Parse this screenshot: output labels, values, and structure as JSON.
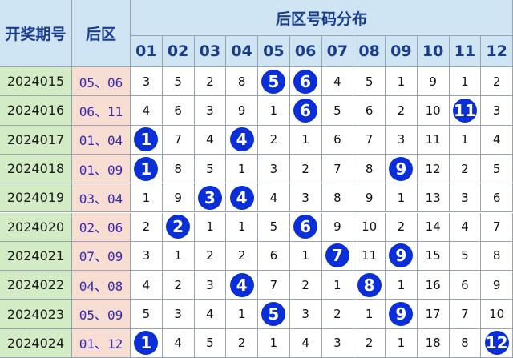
{
  "table": {
    "title": "后区号码分布",
    "col_headers": [
      "开奖期号",
      "后区"
    ],
    "numbers": [
      "01",
      "02",
      "03",
      "04",
      "05",
      "06",
      "07",
      "08",
      "09",
      "10",
      "11",
      "12"
    ],
    "rows": [
      {
        "period": "2024015",
        "back": "05、06",
        "cells": [
          3,
          5,
          2,
          8,
          5,
          6,
          4,
          5,
          1,
          9,
          1,
          2
        ]
      },
      {
        "period": "2024016",
        "back": "06、11",
        "cells": [
          4,
          6,
          3,
          9,
          1,
          6,
          5,
          6,
          2,
          10,
          11,
          3
        ]
      },
      {
        "period": "2024017",
        "back": "01、04",
        "cells": [
          1,
          7,
          4,
          4,
          2,
          1,
          6,
          7,
          3,
          11,
          1,
          4
        ]
      },
      {
        "period": "2024018",
        "back": "01、09",
        "cells": [
          1,
          8,
          5,
          1,
          3,
          2,
          7,
          8,
          9,
          12,
          2,
          5
        ]
      },
      {
        "period": "2024019",
        "back": "03、04",
        "cells": [
          1,
          9,
          3,
          4,
          4,
          3,
          8,
          9,
          1,
          13,
          3,
          6
        ]
      },
      {
        "period": "2024020",
        "back": "02、06",
        "cells": [
          2,
          2,
          1,
          1,
          5,
          6,
          9,
          10,
          2,
          14,
          4,
          7
        ]
      },
      {
        "period": "2024021",
        "back": "07、09",
        "cells": [
          3,
          1,
          2,
          2,
          6,
          1,
          7,
          11,
          9,
          15,
          5,
          8
        ]
      },
      {
        "period": "2024022",
        "back": "04、08",
        "cells": [
          4,
          2,
          3,
          4,
          7,
          2,
          1,
          8,
          1,
          16,
          6,
          9
        ]
      },
      {
        "period": "2024023",
        "back": "05、09",
        "cells": [
          5,
          3,
          4,
          1,
          5,
          3,
          2,
          1,
          9,
          17,
          7,
          10
        ]
      },
      {
        "period": "2024024",
        "back": "01、12",
        "cells": [
          1,
          4,
          5,
          2,
          1,
          4,
          3,
          2,
          1,
          18,
          8,
          12
        ]
      }
    ]
  }
}
